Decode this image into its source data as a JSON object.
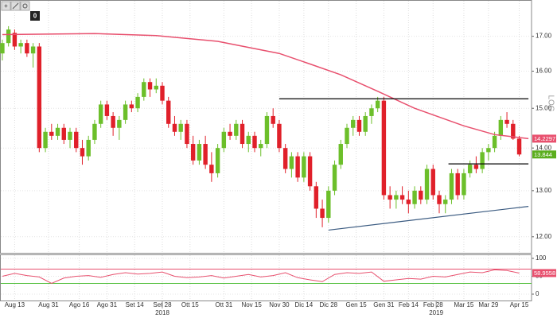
{
  "toolbar": {
    "badge": "0"
  },
  "chart_data": [
    {
      "type": "candlestick",
      "scale_label": "LOG",
      "log_scale": true,
      "xlim": [
        -0.5,
        172
      ],
      "ylim": [
        11.67,
        18.08
      ],
      "yticks": [
        {
          "value": 12,
          "label": "12.00"
        },
        {
          "value": 13,
          "label": "13.00"
        },
        {
          "value": 14,
          "label": "14.00"
        },
        {
          "value": 15,
          "label": "15.00"
        },
        {
          "value": 16,
          "label": "16.00"
        },
        {
          "value": 17,
          "label": "17.00"
        }
      ],
      "xticks": [
        {
          "value": 4,
          "label": "Aug 13"
        },
        {
          "value": 15,
          "label": "Aug 31"
        },
        {
          "value": 25,
          "label": "Ago 16"
        },
        {
          "value": 34,
          "label": "Ago 31"
        },
        {
          "value": 43,
          "label": "Set 14"
        },
        {
          "value": 52,
          "label": "Set 28"
        },
        {
          "value": 61,
          "label": "Ott 15"
        },
        {
          "value": 72,
          "label": "Ott 31"
        },
        {
          "value": 81,
          "label": "Nov 15"
        },
        {
          "value": 90,
          "label": "Nov 30"
        },
        {
          "value": 98,
          "label": "Dic 14"
        },
        {
          "value": 106,
          "label": "Dic 28"
        },
        {
          "value": 115,
          "label": "Gen 15"
        },
        {
          "value": 124,
          "label": "Gen 31"
        },
        {
          "value": 132,
          "label": "Feb 14"
        },
        {
          "value": 140,
          "label": "Feb 28"
        },
        {
          "value": 150,
          "label": "Mar 15"
        },
        {
          "value": 158,
          "label": "Mar 29"
        },
        {
          "value": 168,
          "label": "Apr 15"
        }
      ],
      "year_ticks": [
        {
          "value": 52,
          "label": "2018"
        },
        {
          "value": 141,
          "label": "2019"
        }
      ],
      "up_color": "#6cbf2a",
      "down_color": "#e0202a",
      "x": [
        0,
        2,
        4,
        6,
        8,
        10,
        12,
        14,
        16,
        18,
        20,
        22,
        24,
        26,
        28,
        30,
        32,
        34,
        36,
        38,
        40,
        42,
        44,
        46,
        48,
        50,
        52,
        54,
        56,
        58,
        60,
        62,
        64,
        66,
        68,
        70,
        72,
        74,
        76,
        78,
        80,
        82,
        84,
        86,
        88,
        90,
        92,
        94,
        96,
        98,
        100,
        102,
        104,
        106,
        108,
        110,
        112,
        114,
        116,
        118,
        120,
        122,
        124,
        126,
        128,
        130,
        132,
        134,
        136,
        138,
        140,
        142,
        144,
        146,
        148,
        150,
        152,
        154,
        156,
        158,
        160,
        162,
        164,
        166,
        168
      ],
      "open": [
        16.5,
        16.8,
        17.1,
        16.7,
        16.8,
        16.5,
        16.7,
        14.0,
        14.4,
        14.3,
        14.5,
        14.2,
        14.4,
        14.0,
        13.8,
        14.2,
        14.6,
        15.1,
        14.8,
        14.5,
        14.7,
        15.1,
        15.0,
        15.3,
        15.7,
        15.5,
        15.6,
        15.2,
        14.6,
        14.4,
        14.6,
        14.1,
        13.7,
        14.1,
        13.6,
        13.4,
        14.0,
        14.4,
        14.3,
        14.6,
        14.1,
        14.3,
        14.0,
        14.1,
        14.8,
        14.6,
        14.0,
        13.5,
        13.8,
        13.3,
        13.8,
        13.1,
        12.6,
        12.4,
        13.0,
        13.6,
        14.1,
        14.5,
        14.7,
        14.4,
        14.8,
        15.0,
        15.2,
        12.9,
        12.8,
        12.9,
        12.8,
        12.7,
        13.0,
        12.8,
        13.5,
        12.9,
        12.7,
        12.8,
        13.4,
        12.9,
        13.4,
        13.6,
        13.5,
        13.9,
        14.0,
        14.3,
        14.7,
        14.6,
        14.23
      ],
      "high": [
        16.9,
        17.3,
        17.2,
        16.9,
        16.9,
        16.8,
        16.8,
        14.5,
        14.6,
        14.6,
        14.6,
        14.5,
        14.5,
        14.2,
        14.3,
        14.7,
        15.2,
        15.2,
        14.9,
        14.8,
        15.2,
        15.2,
        15.4,
        15.8,
        15.8,
        15.8,
        15.7,
        15.3,
        14.8,
        14.7,
        14.7,
        14.3,
        14.2,
        14.3,
        13.9,
        14.1,
        14.5,
        14.6,
        14.7,
        14.7,
        14.4,
        14.4,
        14.2,
        14.9,
        15.0,
        14.7,
        14.1,
        13.9,
        13.9,
        13.9,
        13.9,
        13.2,
        12.8,
        13.1,
        13.7,
        14.2,
        14.6,
        14.8,
        14.8,
        14.9,
        15.1,
        15.3,
        15.3,
        13.1,
        13.0,
        13.1,
        13.0,
        13.1,
        13.1,
        13.6,
        13.6,
        13.0,
        12.9,
        13.5,
        13.5,
        13.5,
        13.7,
        13.8,
        14.0,
        14.1,
        14.4,
        14.8,
        14.9,
        14.7,
        14.3
      ],
      "low": [
        16.3,
        16.7,
        16.6,
        16.5,
        16.4,
        16.1,
        13.9,
        13.9,
        14.2,
        14.2,
        14.1,
        14.0,
        13.9,
        13.6,
        13.7,
        14.1,
        14.5,
        14.7,
        14.3,
        14.2,
        14.6,
        14.9,
        14.9,
        15.2,
        15.3,
        15.4,
        15.1,
        14.5,
        14.3,
        14.2,
        14.0,
        13.6,
        13.6,
        13.5,
        13.2,
        13.3,
        13.9,
        14.2,
        14.2,
        14.0,
        13.9,
        13.9,
        13.8,
        14.0,
        14.5,
        13.9,
        13.4,
        13.3,
        13.2,
        13.2,
        13.0,
        12.4,
        12.2,
        12.3,
        12.9,
        13.5,
        14.0,
        14.3,
        14.3,
        14.3,
        14.6,
        14.9,
        12.8,
        12.6,
        12.6,
        12.7,
        12.5,
        12.6,
        12.7,
        12.7,
        12.8,
        12.5,
        12.5,
        12.7,
        12.8,
        12.8,
        13.3,
        13.4,
        13.4,
        13.7,
        13.9,
        14.2,
        14.5,
        14.2,
        13.8
      ],
      "close": [
        16.8,
        17.2,
        16.7,
        16.8,
        16.5,
        16.7,
        14.0,
        14.4,
        14.3,
        14.5,
        14.2,
        14.4,
        14.0,
        13.8,
        14.2,
        14.6,
        15.1,
        14.8,
        14.5,
        14.7,
        15.1,
        15.0,
        15.3,
        15.7,
        15.5,
        15.6,
        15.2,
        14.6,
        14.4,
        14.6,
        14.1,
        13.7,
        14.1,
        13.6,
        13.4,
        14.0,
        14.4,
        14.3,
        14.6,
        14.1,
        14.3,
        14.0,
        14.1,
        14.8,
        14.6,
        14.0,
        13.5,
        13.8,
        13.3,
        13.8,
        13.1,
        12.6,
        12.4,
        13.0,
        13.6,
        14.1,
        14.5,
        14.7,
        14.4,
        14.8,
        15.0,
        15.2,
        12.9,
        12.8,
        12.9,
        12.8,
        12.7,
        13.0,
        12.8,
        13.5,
        12.9,
        12.7,
        12.8,
        13.4,
        12.9,
        13.4,
        13.6,
        13.5,
        13.9,
        14.0,
        14.3,
        14.7,
        14.6,
        14.23,
        13.844
      ],
      "overlays": [
        {
          "color": "#e8506e",
          "width": 1.5,
          "x": [
            0,
            30,
            50,
            70,
            90,
            100,
            110,
            122,
            134,
            150,
            160,
            171
          ],
          "values": [
            17.05,
            17.08,
            17.02,
            16.85,
            16.5,
            16.2,
            15.9,
            15.45,
            15.0,
            14.55,
            14.33,
            14.2297
          ]
        },
        {
          "color": "#000000",
          "width": 1.2,
          "x": [
            90,
            171
          ],
          "values": [
            15.25,
            15.25
          ]
        },
        {
          "color": "#000000",
          "width": 1.2,
          "x": [
            145,
            171
          ],
          "values": [
            13.62,
            13.62
          ]
        },
        {
          "color": "#3a5a80",
          "width": 1.2,
          "x": [
            106,
            171
          ],
          "values": [
            12.14,
            12.65
          ]
        }
      ],
      "price_tags": [
        {
          "value": 14.2297,
          "color": "#e8506e"
        },
        {
          "value": 13.844,
          "color": "#5cae1e"
        }
      ]
    },
    {
      "type": "line",
      "xlim": [
        -0.5,
        172
      ],
      "ylim": [
        0,
        100
      ],
      "yticks": [
        0,
        50,
        100
      ],
      "color": "#e8506e",
      "x": [
        0,
        4,
        8,
        12,
        16,
        20,
        24,
        28,
        32,
        36,
        40,
        44,
        48,
        52,
        56,
        60,
        64,
        68,
        72,
        76,
        80,
        84,
        88,
        92,
        96,
        100,
        104,
        108,
        112,
        116,
        120,
        124,
        128,
        132,
        136,
        140,
        144,
        148,
        152,
        156,
        160,
        164,
        168
      ],
      "values": [
        50,
        58,
        52,
        48,
        30,
        45,
        50,
        52,
        47,
        55,
        60,
        56,
        58,
        62,
        50,
        46,
        48,
        52,
        45,
        50,
        55,
        48,
        52,
        60,
        46,
        40,
        35,
        55,
        60,
        58,
        62,
        36,
        40,
        44,
        42,
        50,
        48,
        55,
        62,
        60,
        68,
        66,
        58.9558
      ],
      "levels": [
        {
          "value": 70,
          "color": "#e8506e"
        },
        {
          "value": 30,
          "color": "#55c040"
        }
      ],
      "price_tags": [
        {
          "value": 58.9558,
          "color": "#e8506e"
        }
      ]
    }
  ]
}
